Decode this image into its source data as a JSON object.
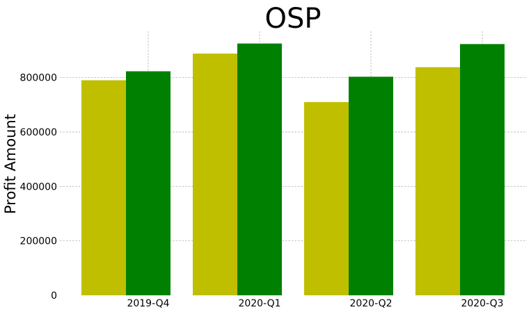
{
  "chart_data": {
    "type": "bar",
    "title": "OSP",
    "xlabel": "",
    "ylabel": "Profit Amount",
    "categories": [
      "2019-Q4",
      "2020-Q1",
      "2020-Q2",
      "2020-Q3"
    ],
    "series": [
      {
        "values": [
          790000,
          888000,
          710000,
          838000
        ],
        "color": "#bfbf00"
      },
      {
        "values": [
          823000,
          925000,
          803000,
          923000
        ],
        "color": "#008000"
      }
    ],
    "ylim": [
      0,
      970000
    ],
    "yticks": [
      0,
      200000,
      400000,
      600000,
      800000
    ],
    "ytick_labels": [
      "0",
      "200000",
      "400000",
      "600000",
      "800000"
    ],
    "grid": true,
    "legend": "none"
  }
}
